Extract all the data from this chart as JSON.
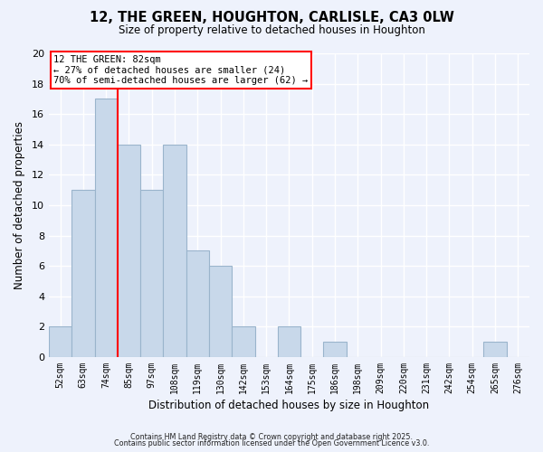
{
  "title": "12, THE GREEN, HOUGHTON, CARLISLE, CA3 0LW",
  "subtitle": "Size of property relative to detached houses in Houghton",
  "xlabel": "Distribution of detached houses by size in Houghton",
  "ylabel": "Number of detached properties",
  "bar_color": "#c8d8ea",
  "bar_edgecolor": "#9ab4cc",
  "background_color": "#eef2fc",
  "grid_color": "#ffffff",
  "categories": [
    "52sqm",
    "63sqm",
    "74sqm",
    "85sqm",
    "97sqm",
    "108sqm",
    "119sqm",
    "130sqm",
    "142sqm",
    "153sqm",
    "164sqm",
    "175sqm",
    "186sqm",
    "198sqm",
    "209sqm",
    "220sqm",
    "231sqm",
    "242sqm",
    "254sqm",
    "265sqm",
    "276sqm"
  ],
  "values": [
    2,
    11,
    17,
    14,
    11,
    14,
    7,
    6,
    2,
    0,
    2,
    0,
    1,
    0,
    0,
    0,
    0,
    0,
    0,
    1,
    0
  ],
  "ylim": [
    0,
    20
  ],
  "yticks": [
    0,
    2,
    4,
    6,
    8,
    10,
    12,
    14,
    16,
    18,
    20
  ],
  "annotation_title": "12 THE GREEN: 82sqm",
  "annotation_line1": "← 27% of detached houses are smaller (24)",
  "annotation_line2": "70% of semi-detached houses are larger (62) →",
  "footer1": "Contains HM Land Registry data © Crown copyright and database right 2025.",
  "footer2": "Contains public sector information licensed under the Open Government Licence v3.0."
}
